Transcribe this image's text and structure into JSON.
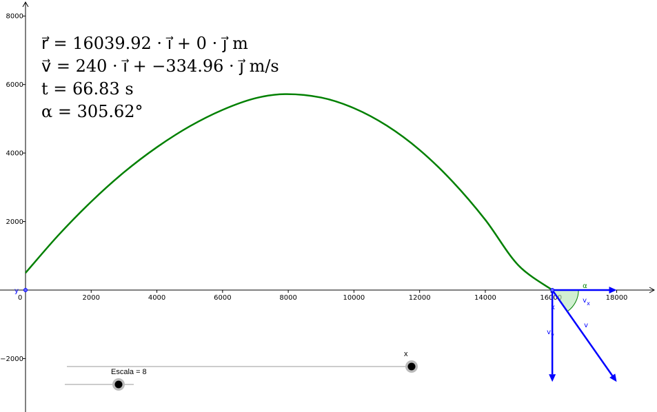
{
  "chart_data": {
    "type": "line",
    "title": "",
    "xlabel": "",
    "ylabel": "",
    "xlim": [
      -600,
      19600
    ],
    "ylim": [
      -3500,
      8400
    ],
    "x_ticks": [
      2000,
      4000,
      6000,
      8000,
      10000,
      12000,
      14000,
      16000,
      18000
    ],
    "y_ticks": [
      -2000,
      2000,
      4000,
      6000,
      8000
    ],
    "origin_label": "0",
    "grid": false,
    "series": [
      {
        "color": "#008000",
        "points": [
          [
            0,
            500
          ],
          [
            1000,
            1600
          ],
          [
            2000,
            2580
          ],
          [
            3000,
            3440
          ],
          [
            4000,
            4170
          ],
          [
            5000,
            4780
          ],
          [
            6000,
            5260
          ],
          [
            7000,
            5600
          ],
          [
            7900,
            5720
          ],
          [
            9000,
            5620
          ],
          [
            10000,
            5310
          ],
          [
            11000,
            4800
          ],
          [
            12000,
            4090
          ],
          [
            13000,
            3170
          ],
          [
            14000,
            2050
          ],
          [
            15000,
            730
          ],
          [
            16040,
            0
          ]
        ]
      }
    ],
    "vectors": [
      {
        "name": "vx",
        "label": "v",
        "sub": "x",
        "color": "#0000ff",
        "from": [
          16040,
          0
        ],
        "to": [
          18000,
          0
        ]
      },
      {
        "name": "vy",
        "label": "v",
        "sub": "y",
        "color": "#0000ff",
        "from": [
          16040,
          0
        ],
        "to": [
          16040,
          -2680
        ]
      },
      {
        "name": "v",
        "label": "v",
        "sub": "",
        "color": "#0000ff",
        "from": [
          16040,
          0
        ],
        "to": [
          18000,
          -2680
        ]
      }
    ],
    "angle_label": "α",
    "point_labels": {
      "x_on_axis": "x",
      "y_at_origin": "y"
    }
  },
  "info": {
    "r_line": "r⃗ = 16039.92 · i⃗ + 0 · j⃗   m",
    "v_line": "v⃗ = 240 · i⃗ + −334.96 · j⃗   m/s",
    "t_line": "t = 66.83   s",
    "alpha_line": "α = 305.62°"
  },
  "sliders": {
    "x_slider": {
      "label": "x",
      "value_fraction": 1.0
    },
    "escala_slider": {
      "label": "Escala = 8",
      "value_fraction": 0.78
    }
  },
  "colors": {
    "trajectory": "#008000",
    "vectors": "#0000ff",
    "angle_fill": "#b3e6b3",
    "axis": "#000000"
  }
}
